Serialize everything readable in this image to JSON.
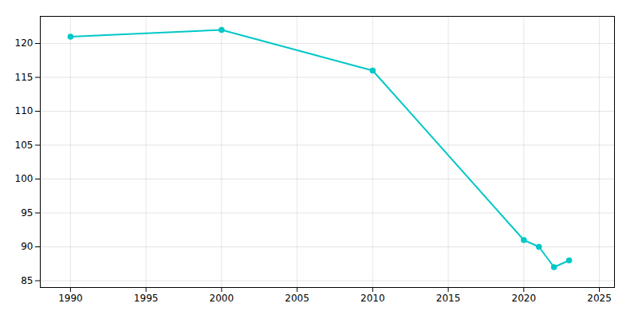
{
  "chart_data": {
    "type": "line",
    "x": [
      1990,
      2000,
      2010,
      2020,
      2021,
      2022,
      2023
    ],
    "values": [
      121,
      122,
      116,
      91,
      90,
      87,
      88
    ],
    "color": "#00C8C8",
    "marker": "circle",
    "xlim": [
      1988,
      2026
    ],
    "ylim": [
      84,
      124
    ],
    "xticks": [
      1990,
      1995,
      2000,
      2005,
      2010,
      2015,
      2020,
      2025
    ],
    "yticks": [
      85,
      90,
      95,
      100,
      105,
      110,
      115,
      120
    ],
    "grid": true
  }
}
